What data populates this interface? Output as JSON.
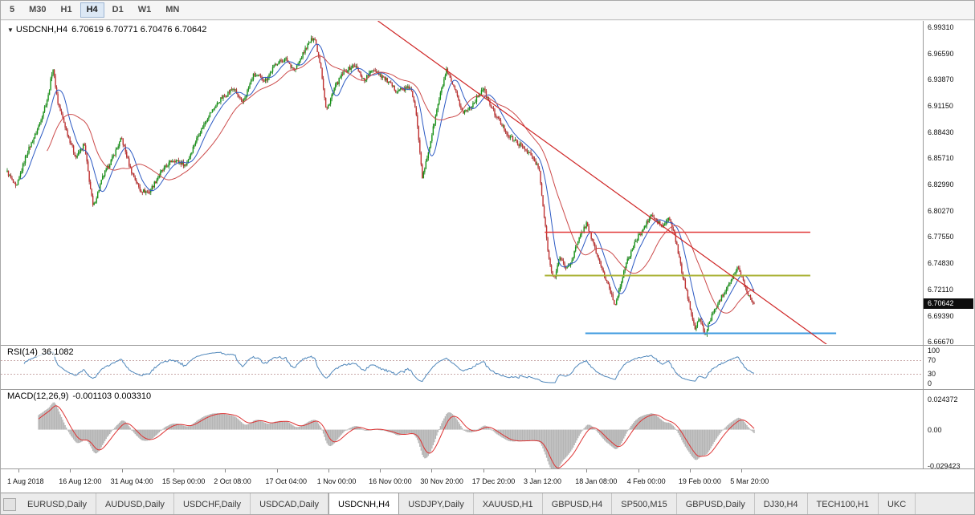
{
  "toolbar": {
    "buttons": [
      "5",
      "M30",
      "H1",
      "H4",
      "D1",
      "W1",
      "MN"
    ],
    "active_index": 3
  },
  "axes": {
    "price_labels": [
      "6.99310",
      "6.96590",
      "6.93870",
      "6.91150",
      "6.88430",
      "6.85710",
      "6.82990",
      "6.80270",
      "6.77550",
      "6.74830",
      "6.72110",
      "6.69390",
      "6.66670"
    ],
    "time_labels": [
      "1 Aug 2018",
      "16 Aug 12:00",
      "31 Aug 04:00",
      "15 Sep 00:00",
      "2 Oct 08:00",
      "17 Oct 04:00",
      "1 Nov 00:00",
      "16 Nov 00:00",
      "30 Nov 20:00",
      "17 Dec 20:00",
      "3 Jan 12:00",
      "18 Jan 08:00",
      "4 Feb 00:00",
      "19 Feb 00:00",
      "5 Mar 20:00"
    ]
  },
  "tabbar": {
    "tabs": [
      "EURUSD,Daily",
      "AUDUSD,Daily",
      "USDCHF,Daily",
      "USDCAD,Daily",
      "USDCNH,H4",
      "USDJPY,Daily",
      "XAUUSD,H1",
      "GBPUSD,H4",
      "SP500,M15",
      "GBPUSD,Daily",
      "DJ30,H4",
      "TECH100,H1",
      "UKC"
    ],
    "active_index": 4
  },
  "chart_data": [
    {
      "type": "candlestick",
      "symbol": "USDCNH",
      "timeframe": "H4",
      "header_title": "USDCNH,H4",
      "header_ohlc": "6.70619 6.70771 6.70476 6.70642",
      "open": 6.70619,
      "high": 6.70771,
      "low": 6.70476,
      "close": 6.70642,
      "price_tag": "6.70642",
      "ylim": [
        6.6644,
        6.9997
      ],
      "colors": {
        "up": "#149414",
        "down": "#c03030",
        "wick_up": "#0b6e0b",
        "wick_down": "#8f2020",
        "ma_fast": "#2b59c3",
        "ma_slow": "#cc4b4b"
      },
      "path": [
        [
          0.0,
          6.843
        ],
        [
          0.012,
          6.826
        ],
        [
          0.025,
          6.86
        ],
        [
          0.04,
          6.886
        ],
        [
          0.055,
          6.922
        ],
        [
          0.061,
          6.952
        ],
        [
          0.068,
          6.914
        ],
        [
          0.08,
          6.884
        ],
        [
          0.092,
          6.858
        ],
        [
          0.103,
          6.872
        ],
        [
          0.115,
          6.806
        ],
        [
          0.128,
          6.838
        ],
        [
          0.14,
          6.856
        ],
        [
          0.153,
          6.878
        ],
        [
          0.165,
          6.846
        ],
        [
          0.178,
          6.824
        ],
        [
          0.19,
          6.822
        ],
        [
          0.205,
          6.842
        ],
        [
          0.222,
          6.856
        ],
        [
          0.239,
          6.85
        ],
        [
          0.255,
          6.88
        ],
        [
          0.27,
          6.902
        ],
        [
          0.285,
          6.918
        ],
        [
          0.303,
          6.93
        ],
        [
          0.315,
          6.914
        ],
        [
          0.33,
          6.944
        ],
        [
          0.346,
          6.938
        ],
        [
          0.36,
          6.956
        ],
        [
          0.373,
          6.96
        ],
        [
          0.385,
          6.948
        ],
        [
          0.4,
          6.972
        ],
        [
          0.411,
          6.984
        ],
        [
          0.42,
          6.952
        ],
        [
          0.427,
          6.906
        ],
        [
          0.438,
          6.93
        ],
        [
          0.45,
          6.946
        ],
        [
          0.465,
          6.954
        ],
        [
          0.478,
          6.938
        ],
        [
          0.49,
          6.95
        ],
        [
          0.505,
          6.94
        ],
        [
          0.52,
          6.928
        ],
        [
          0.54,
          6.93
        ],
        [
          0.548,
          6.902
        ],
        [
          0.556,
          6.836
        ],
        [
          0.565,
          6.868
        ],
        [
          0.578,
          6.918
        ],
        [
          0.588,
          6.948
        ],
        [
          0.598,
          6.93
        ],
        [
          0.61,
          6.904
        ],
        [
          0.622,
          6.912
        ],
        [
          0.637,
          6.93
        ],
        [
          0.648,
          6.91
        ],
        [
          0.66,
          6.894
        ],
        [
          0.672,
          6.88
        ],
        [
          0.685,
          6.872
        ],
        [
          0.7,
          6.862
        ],
        [
          0.712,
          6.846
        ],
        [
          0.718,
          6.802
        ],
        [
          0.726,
          6.748
        ],
        [
          0.733,
          6.732
        ],
        [
          0.74,
          6.756
        ],
        [
          0.748,
          6.742
        ],
        [
          0.755,
          6.75
        ],
        [
          0.762,
          6.766
        ],
        [
          0.77,
          6.782
        ],
        [
          0.776,
          6.79
        ],
        [
          0.784,
          6.77
        ],
        [
          0.792,
          6.752
        ],
        [
          0.8,
          6.734
        ],
        [
          0.808,
          6.718
        ],
        [
          0.814,
          6.704
        ],
        [
          0.82,
          6.724
        ],
        [
          0.828,
          6.746
        ],
        [
          0.836,
          6.762
        ],
        [
          0.845,
          6.776
        ],
        [
          0.855,
          6.788
        ],
        [
          0.862,
          6.798
        ],
        [
          0.87,
          6.792
        ],
        [
          0.878,
          6.786
        ],
        [
          0.886,
          6.796
        ],
        [
          0.895,
          6.772
        ],
        [
          0.903,
          6.74
        ],
        [
          0.912,
          6.71
        ],
        [
          0.921,
          6.68
        ],
        [
          0.928,
          6.692
        ],
        [
          0.934,
          6.672
        ],
        [
          0.941,
          6.69
        ],
        [
          0.95,
          6.704
        ],
        [
          0.958,
          6.716
        ],
        [
          0.968,
          6.73
        ],
        [
          0.978,
          6.744
        ],
        [
          0.985,
          6.73
        ],
        [
          0.992,
          6.716
        ],
        [
          1.0,
          6.706
        ]
      ],
      "overlays": {
        "hlines": [
          {
            "price": 6.781,
            "x0": 0.59,
            "x1": 0.878,
            "color": "#e13a3a",
            "width": 1.4
          },
          {
            "price": 6.736,
            "x0": 0.59,
            "x1": 0.878,
            "color": "#a9b234",
            "width": 2
          },
          {
            "price": 6.676,
            "x0": 0.634,
            "x1": 0.906,
            "color": "#3e9adf",
            "width": 2
          }
        ],
        "trendline": {
          "p1": [
            0.409,
            6.9997
          ],
          "p2": [
            0.901,
            6.6605
          ],
          "color": "#cf2626",
          "width": 1.2
        }
      }
    },
    {
      "type": "line",
      "name": "RSI(14)",
      "value_text": "36.1082",
      "value": 36.1082,
      "period": 14,
      "ylim": [
        -18,
        115
      ],
      "levels": [
        100,
        70,
        30,
        0
      ],
      "dashed_levels": [
        70,
        30
      ],
      "color": "#4e86ba",
      "level_color": "#c9a9a9"
    },
    {
      "type": "macd",
      "name": "MACD(12,26,9)",
      "value_text": "-0.001103 0.003310",
      "macd_value": -0.001103,
      "signal_value": 0.00331,
      "ylim": [
        -0.0314,
        0.03215
      ],
      "axis_labels": [
        {
          "text": "0.024372",
          "v": 0.024372
        },
        {
          "text": "0.00",
          "v": 0
        },
        {
          "text": "-0.029423",
          "v": -0.029423
        }
      ],
      "hist_color": "#b5b5b5",
      "signal_color": "#dd3333"
    }
  ]
}
